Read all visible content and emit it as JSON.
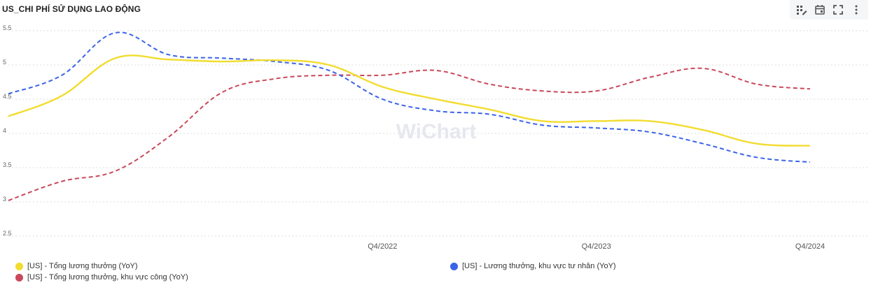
{
  "title": "US_CHI PHÍ SỬ DỤNG LAO ĐỘNG",
  "toolbar": {
    "icons": [
      "grid-edit-icon",
      "calendar-icon",
      "fullscreen-icon",
      "more-vertical-icon"
    ]
  },
  "watermark": "WiChart",
  "colors": {
    "yellow": "#f2dc2f",
    "blue": "#3a63e8",
    "red": "#c9485b",
    "grid": "#dcdcdc"
  },
  "chart_data": {
    "type": "line",
    "ylim": [
      2.5,
      5.5
    ],
    "y_ticks": [
      "5.5",
      "5",
      "4.5",
      "4",
      "3.5",
      "3",
      "2.5"
    ],
    "x_ticks": [
      "Q4/2022",
      "Q4/2023",
      "Q4/2024"
    ],
    "x": [
      "Q1/2021",
      "Q2/2021",
      "Q3/2021",
      "Q4/2021",
      "Q1/2022",
      "Q2/2022",
      "Q3/2022",
      "Q4/2022",
      "Q1/2023",
      "Q2/2023",
      "Q3/2023",
      "Q4/2023",
      "Q1/2024",
      "Q2/2024",
      "Q3/2024",
      "Q4/2024"
    ],
    "series": [
      {
        "name": "[US] - Tổng lương thưởng (YoY)",
        "color": "#f2dc2f",
        "dash": false,
        "values": [
          4.25,
          4.55,
          5.1,
          5.08,
          5.05,
          5.07,
          5.0,
          4.68,
          4.5,
          4.35,
          4.18,
          4.18,
          4.18,
          4.05,
          3.85,
          3.82
        ]
      },
      {
        "name": "[US] - Lương thưởng, khu vực tư nhân (YoY)",
        "color": "#3a63e8",
        "dash": true,
        "values": [
          4.58,
          4.85,
          5.47,
          5.15,
          5.1,
          5.05,
          4.92,
          4.5,
          4.33,
          4.28,
          4.12,
          4.08,
          4.02,
          3.85,
          3.65,
          3.58
        ]
      },
      {
        "name": "[US] - Tổng lương thưởng, khu vực công (YoY)",
        "color": "#c9485b",
        "dash": true,
        "values": [
          3.02,
          3.3,
          3.45,
          3.95,
          4.6,
          4.8,
          4.85,
          4.85,
          4.92,
          4.72,
          4.62,
          4.62,
          4.82,
          4.95,
          4.72,
          4.65
        ]
      }
    ],
    "legend": "bottom"
  }
}
